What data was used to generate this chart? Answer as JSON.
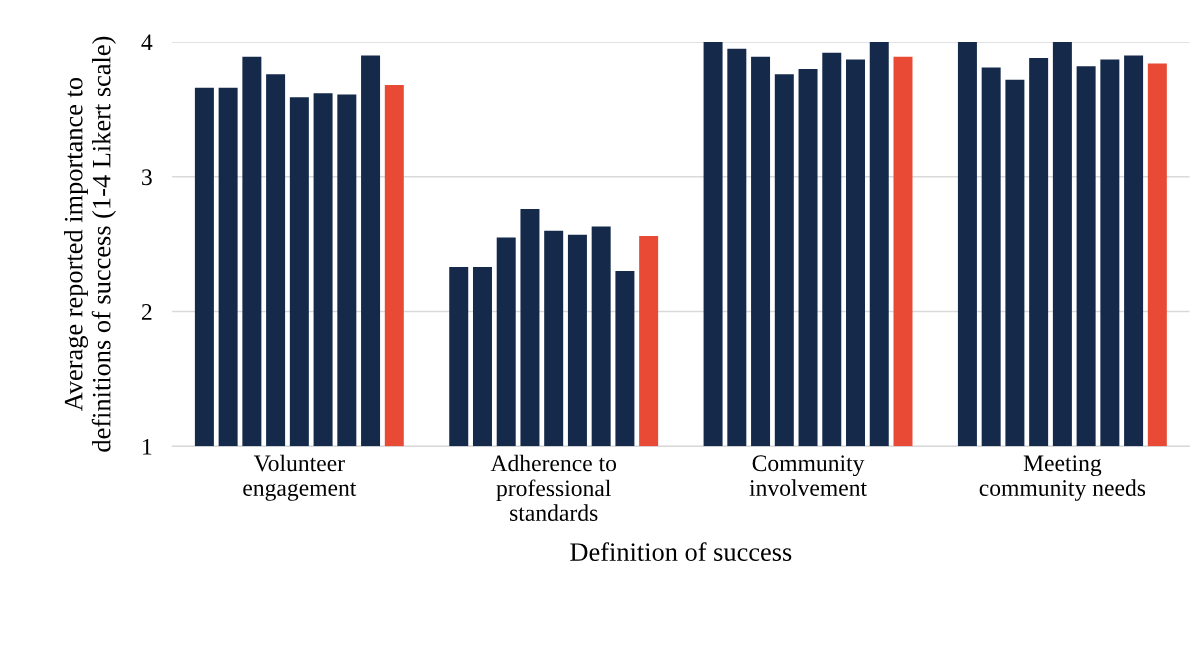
{
  "chart_data": {
    "type": "bar",
    "xlabel": "Definition of success",
    "ylabel": "Average reported importance to\ndefinitions of success (1-4 Likert scale)",
    "categories": [
      "Volunteer\nengagement",
      "Adherence to\nprofessional\nstandards",
      "Community\ninvolvement",
      "Meeting\ncommunity needs"
    ],
    "series": [
      {
        "color": "#15294b",
        "values": [
          3.66,
          2.33,
          4.0,
          4.0
        ]
      },
      {
        "color": "#15294b",
        "values": [
          3.66,
          2.33,
          3.95,
          3.81
        ]
      },
      {
        "color": "#15294b",
        "values": [
          3.89,
          2.55,
          3.89,
          3.72
        ]
      },
      {
        "color": "#15294b",
        "values": [
          3.76,
          2.76,
          3.76,
          3.88
        ]
      },
      {
        "color": "#15294b",
        "values": [
          3.59,
          2.6,
          3.8,
          4.0
        ]
      },
      {
        "color": "#15294b",
        "values": [
          3.62,
          2.57,
          3.92,
          3.82
        ]
      },
      {
        "color": "#15294b",
        "values": [
          3.61,
          2.63,
          3.87,
          3.87
        ]
      },
      {
        "color": "#15294b",
        "values": [
          3.9,
          2.3,
          4.0,
          3.9
        ]
      },
      {
        "color": "#e84a35",
        "values": [
          3.68,
          2.56,
          3.89,
          3.84
        ]
      }
    ],
    "ylim": [
      1,
      4
    ],
    "yticks": [
      1,
      2,
      3,
      4
    ],
    "grid": "y"
  }
}
